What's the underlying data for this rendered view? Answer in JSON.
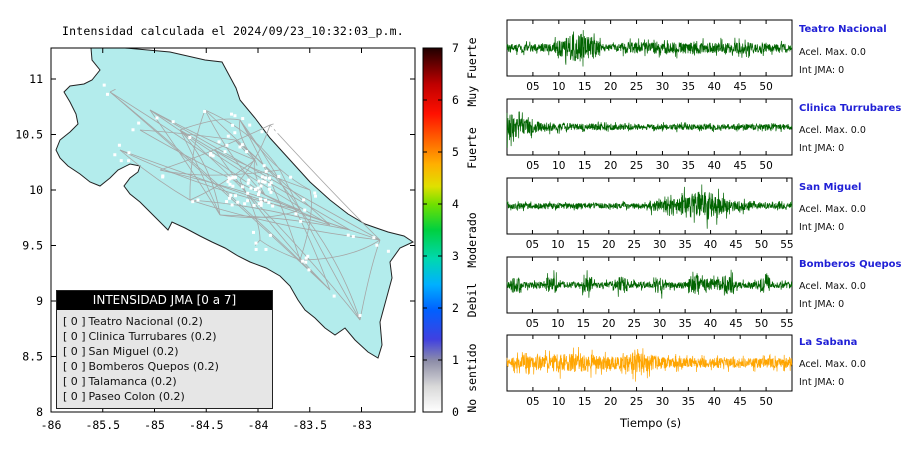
{
  "map": {
    "title": "Intensidad calculada el 2024/09/23_10:32:03_p.m.",
    "x_ticks": [
      "-86",
      "-85.5",
      "-85",
      "-84.5",
      "-84",
      "-83.5",
      "-83"
    ],
    "y_ticks": [
      "11",
      "10.5",
      "10",
      "9.5",
      "9",
      "8.5",
      "8"
    ],
    "land_color": "#b3ecec",
    "road_color": "#a6a6a6"
  },
  "scale": {
    "ticks": [
      "0",
      "1",
      "2",
      "3",
      "4",
      "5",
      "6",
      "7"
    ],
    "labels": [
      "No sentido",
      "Debil",
      "Moderado",
      "Fuerte",
      "Muy Fuerte"
    ]
  },
  "legend": {
    "header": "INTENSIDAD JMA [0 a 7]",
    "items": [
      {
        "value": "[ 0 ]",
        "label": "Teatro Nacional (0.2)"
      },
      {
        "value": "[ 0 ]",
        "label": "Clinica Turrubares (0.2)"
      },
      {
        "value": "[ 0 ]",
        "label": "San Miguel (0.2)"
      },
      {
        "value": "[ 0 ]",
        "label": "Bomberos Quepos (0.2)"
      },
      {
        "value": "[ 0 ]",
        "label": "Talamanca (0.2)"
      },
      {
        "value": "[ 0 ]",
        "label": "Paseo Colon (0.2)"
      }
    ]
  },
  "chart_data": {
    "type": "line",
    "xlabel": "Tiempo (s)",
    "series": [
      {
        "name": "Teatro Nacional",
        "accel_label": "Acel. Max. 0.0",
        "jma_label": "Int JMA: 0",
        "x_ticks": [
          "05",
          "10",
          "15",
          "20",
          "25",
          "30",
          "35",
          "40",
          "45",
          "50"
        ],
        "xlim": [
          0,
          55
        ],
        "color": "#006400"
      },
      {
        "name": "Clinica Turrubares",
        "accel_label": "Acel. Max. 0.0",
        "jma_label": "Int JMA: 0",
        "x_ticks": [
          "05",
          "10",
          "15",
          "20",
          "25",
          "30",
          "35",
          "40",
          "45",
          "50"
        ],
        "xlim": [
          0,
          55
        ],
        "color": "#006400"
      },
      {
        "name": "San Miguel",
        "accel_label": "Acel. Max. 0.0",
        "jma_label": "Int JMA: 0",
        "x_ticks": [
          "05",
          "10",
          "15",
          "20",
          "25",
          "30",
          "35",
          "40",
          "45",
          "50",
          "55"
        ],
        "xlim": [
          0,
          56
        ],
        "color": "#006400"
      },
      {
        "name": "Bomberos Quepos",
        "accel_label": "Acel. Max. 0.0",
        "jma_label": "Int JMA: 0",
        "x_ticks": [
          "05",
          "10",
          "15",
          "20",
          "25",
          "30",
          "35",
          "40",
          "45",
          "50",
          "55"
        ],
        "xlim": [
          0,
          56
        ],
        "color": "#006400"
      },
      {
        "name": "La Sabana",
        "accel_label": "Acel. Max. 0.0",
        "jma_label": "Int JMA: 0",
        "x_ticks": [
          "05",
          "10",
          "15",
          "20",
          "25",
          "30",
          "35",
          "40",
          "45",
          "50"
        ],
        "xlim": [
          0,
          55
        ],
        "color": "#ffa500"
      }
    ]
  }
}
